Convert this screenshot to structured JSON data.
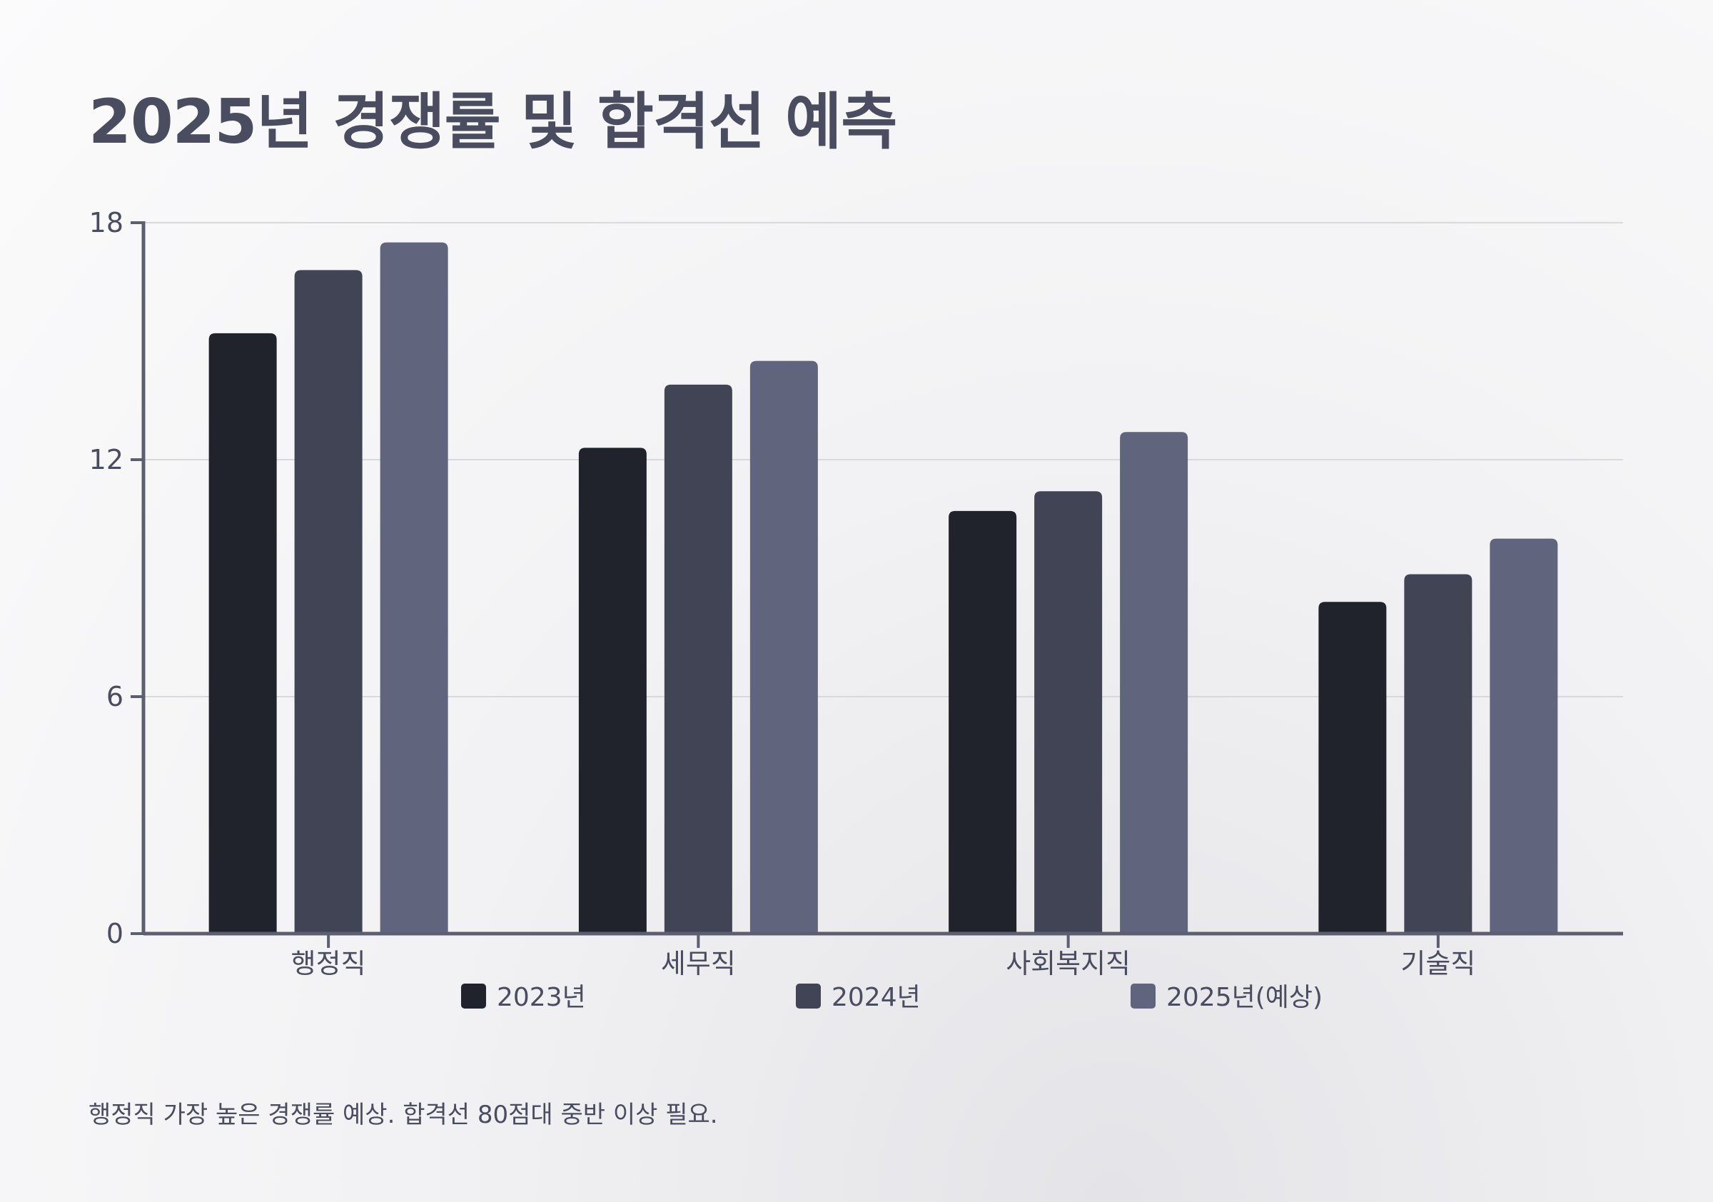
{
  "title": "2025년 경쟁률 및 합격선 예측",
  "caption": "행정직 가장 높은 경쟁률 예상. 합격선 80점대 중반 이상 필요.",
  "chart_data": {
    "type": "bar",
    "categories": [
      "행정직",
      "세무직",
      "사회복지직",
      "기술직"
    ],
    "series": [
      {
        "name": "2023년",
        "values": [
          15.2,
          12.3,
          10.7,
          8.4
        ],
        "color": "#20232b"
      },
      {
        "name": "2024년",
        "values": [
          16.8,
          13.9,
          11.2,
          9.1
        ],
        "color": "#414455"
      },
      {
        "name": "2025년(예상)",
        "values": [
          17.5,
          14.5,
          12.7,
          10.0
        ],
        "color": "#60647c"
      }
    ],
    "yticks": [
      0,
      6,
      12,
      18
    ],
    "ylim": [
      0,
      18
    ],
    "grid": true,
    "legend_position": "bottom"
  }
}
